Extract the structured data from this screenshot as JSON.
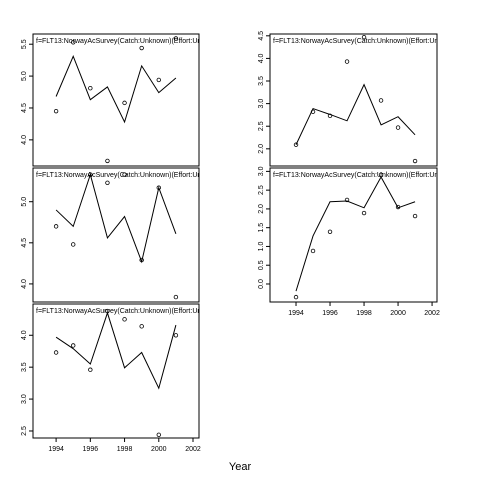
{
  "xlabel": "Year",
  "chart_data": [
    {
      "type": "line",
      "title": "f=FLT13:NorwayAcSurvey(Catch:Unknown)(Effort:Un",
      "x": [
        1994,
        1995,
        1996,
        1997,
        1998,
        1999,
        2000,
        2001
      ],
      "values": [
        4.68,
        5.31,
        4.63,
        4.83,
        4.28,
        5.16,
        4.74,
        4.97
      ],
      "points": [
        4.45,
        5.53,
        4.81,
        3.67,
        4.58,
        5.44,
        4.94,
        5.59
      ],
      "xlim": [
        1992.65,
        2002.35
      ],
      "ylim": [
        3.59,
        5.66
      ],
      "yticks": [
        4.0,
        4.5,
        5.0,
        5.5
      ]
    },
    {
      "type": "line",
      "title": "f=FLT13:NorwayAcSurvey(Catch:Unknown)(Effort:Un",
      "x": [
        1994,
        1995,
        1996,
        1997,
        1998,
        1999,
        2000,
        2001
      ],
      "values": [
        4.9,
        4.7,
        5.33,
        4.56,
        4.82,
        4.27,
        5.17,
        4.61
      ],
      "points": [
        4.7,
        4.48,
        5.33,
        5.23,
        5.33,
        4.29,
        5.17,
        3.84
      ],
      "xlim": [
        1992.65,
        2002.35
      ],
      "ylim": [
        3.78,
        5.41
      ],
      "yticks": [
        4.0,
        4.5,
        5.0
      ]
    },
    {
      "type": "line",
      "title": "f=FLT13:NorwayAcSurvey(Catch:Unknown)(Effort:Un",
      "x": [
        1994,
        1995,
        1996,
        1997,
        1998,
        1999,
        2000,
        2001
      ],
      "values": [
        3.97,
        3.79,
        3.55,
        4.35,
        3.49,
        3.73,
        3.17,
        4.16
      ],
      "points": [
        3.73,
        3.84,
        3.46,
        4.38,
        4.25,
        4.14,
        2.44,
        4.0
      ],
      "xlim": [
        1992.65,
        2002.35
      ],
      "xticks": [
        1994,
        1996,
        1998,
        2000,
        2002
      ],
      "ylim": [
        2.39,
        4.49
      ],
      "yticks": [
        2.5,
        3.0,
        3.5,
        4.0
      ]
    },
    {
      "type": "line",
      "title": "f=FLT13:NorwayAcSurvey(Catch:Unknown)(Effort:Un",
      "x": [
        1994,
        1995,
        1996,
        1997,
        1998,
        1999,
        2000,
        2001
      ],
      "values": [
        2.09,
        2.89,
        2.76,
        2.62,
        3.42,
        2.53,
        2.71,
        2.31
      ],
      "points": [
        2.09,
        2.82,
        2.73,
        3.93,
        4.47,
        3.07,
        2.47,
        1.73
      ],
      "xlim": [
        1992.47,
        2002.29
      ],
      "ylim": [
        1.62,
        4.54
      ],
      "yticks": [
        2.0,
        2.5,
        3.0,
        3.5,
        4.0,
        4.5
      ]
    },
    {
      "type": "line",
      "title": "f=FLT13:NorwayAcSurvey(Catch:Unknown)(Effort:Un",
      "x": [
        1994,
        1995,
        1996,
        1997,
        1998,
        1999,
        2000,
        2001
      ],
      "values": [
        -0.19,
        1.28,
        2.19,
        2.21,
        2.03,
        2.85,
        2.03,
        2.19
      ],
      "points": [
        -0.35,
        0.88,
        1.39,
        2.24,
        1.89,
        2.91,
        2.05,
        1.81
      ],
      "xlim": [
        1992.47,
        2002.29
      ],
      "xticks": [
        1994,
        1996,
        1998,
        2000,
        2002
      ],
      "ylim": [
        -0.48,
        3.09
      ],
      "yticks": [
        0.0,
        0.5,
        1.0,
        1.5,
        2.0,
        2.5,
        3.0
      ]
    }
  ]
}
